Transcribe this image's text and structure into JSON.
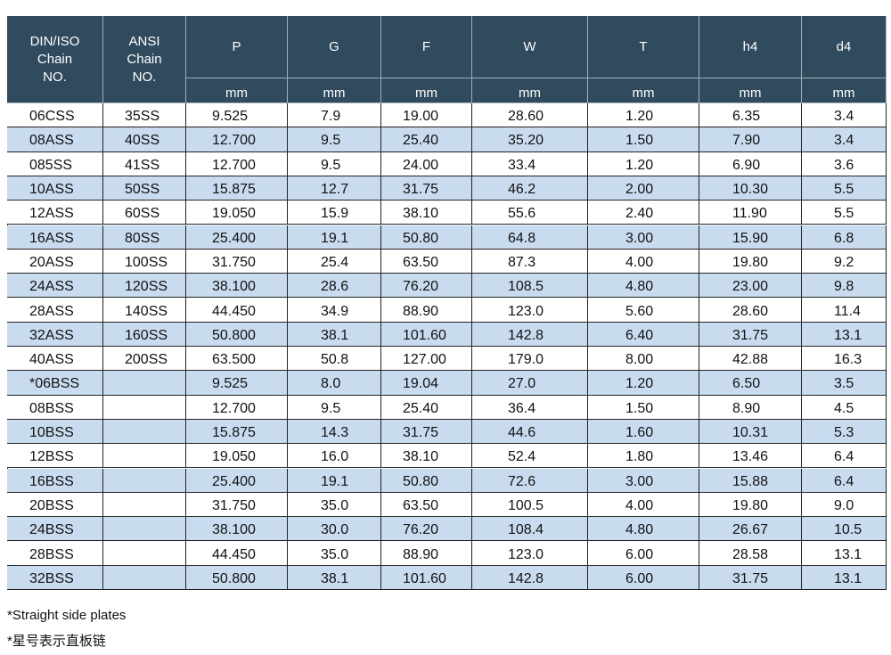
{
  "table": {
    "header": [
      {
        "lines": [
          "DIN/ISO",
          "Chain",
          "NO."
        ]
      },
      {
        "lines": [
          "ANSI",
          "Chain",
          "NO."
        ]
      },
      {
        "lines": [
          "P"
        ]
      },
      {
        "lines": [
          "G"
        ]
      },
      {
        "lines": [
          "F"
        ]
      },
      {
        "lines": [
          "W"
        ]
      },
      {
        "lines": [
          "T"
        ]
      },
      {
        "lines": [
          "h4"
        ]
      },
      {
        "lines": [
          "d4"
        ]
      }
    ],
    "units": [
      "mm",
      "mm",
      "mm",
      "mm",
      "mm",
      "mm",
      "mm"
    ],
    "rows": [
      [
        "06CSS",
        "35SS",
        "9.525",
        "7.9",
        "19.00",
        "28.60",
        "1.20",
        "6.35",
        "3.4"
      ],
      [
        "08ASS",
        "40SS",
        "12.700",
        "9.5",
        "25.40",
        "35.20",
        "1.50",
        "7.90",
        "3.4"
      ],
      [
        "085SS",
        "41SS",
        "12.700",
        "9.5",
        "24.00",
        "33.4",
        "1.20",
        "6.90",
        "3.6"
      ],
      [
        "10ASS",
        "50SS",
        "15.875",
        "12.7",
        "31.75",
        "46.2",
        "2.00",
        "10.30",
        "5.5"
      ],
      [
        "12ASS",
        "60SS",
        "19.050",
        "15.9",
        "38.10",
        "55.6",
        "2.40",
        "11.90",
        "5.5"
      ],
      [
        "16ASS",
        "80SS",
        "25.400",
        "19.1",
        "50.80",
        "64.8",
        "3.00",
        "15.90",
        "6.8"
      ],
      [
        "20ASS",
        "100SS",
        "31.750",
        "25.4",
        "63.50",
        "87.3",
        "4.00",
        "19.80",
        "9.2"
      ],
      [
        "24ASS",
        "120SS",
        "38.100",
        "28.6",
        "76.20",
        "108.5",
        "4.80",
        "23.00",
        "9.8"
      ],
      [
        "28ASS",
        "140SS",
        "44.450",
        "34.9",
        "88.90",
        "123.0",
        "5.60",
        "28.60",
        "11.4"
      ],
      [
        "32ASS",
        "160SS",
        "50.800",
        "38.1",
        "101.60",
        "142.8",
        "6.40",
        "31.75",
        "13.1"
      ],
      [
        "40ASS",
        "200SS",
        "63.500",
        "50.8",
        "127.00",
        "179.0",
        "8.00",
        "42.88",
        "16.3"
      ],
      [
        "*06BSS",
        null,
        "9.525",
        "8.0",
        "19.04",
        "27.0",
        "1.20",
        "6.50",
        "3.5"
      ],
      [
        "08BSS",
        null,
        "12.700",
        "9.5",
        "25.40",
        "36.4",
        "1.50",
        "8.90",
        "4.5"
      ],
      [
        "10BSS",
        null,
        "15.875",
        "14.3",
        "31.75",
        "44.6",
        "1.60",
        "10.31",
        "5.3"
      ],
      [
        "12BSS",
        null,
        "19.050",
        "16.0",
        "38.10",
        "52.4",
        "1.80",
        "13.46",
        "6.4"
      ],
      [
        "16BSS",
        null,
        "25.400",
        "19.1",
        "50.80",
        "72.6",
        "3.00",
        "15.88",
        "6.4"
      ],
      [
        "20BSS",
        null,
        "31.750",
        "35.0",
        "63.50",
        "100.5",
        "4.00",
        "19.80",
        "9.0"
      ],
      [
        "24BSS",
        null,
        "38.100",
        "30.0",
        "76.20",
        "108.4",
        "4.80",
        "26.67",
        "10.5"
      ],
      [
        "28BSS",
        null,
        "44.450",
        "35.0",
        "88.90",
        "123.0",
        "6.00",
        "28.58",
        "13.1"
      ],
      [
        "32BSS",
        null,
        "50.800",
        "38.1",
        "101.60",
        "142.8",
        "6.00",
        "31.75",
        "13.1"
      ]
    ]
  },
  "notes": [
    "*Straight side plates",
    "*星号表示直板链"
  ]
}
